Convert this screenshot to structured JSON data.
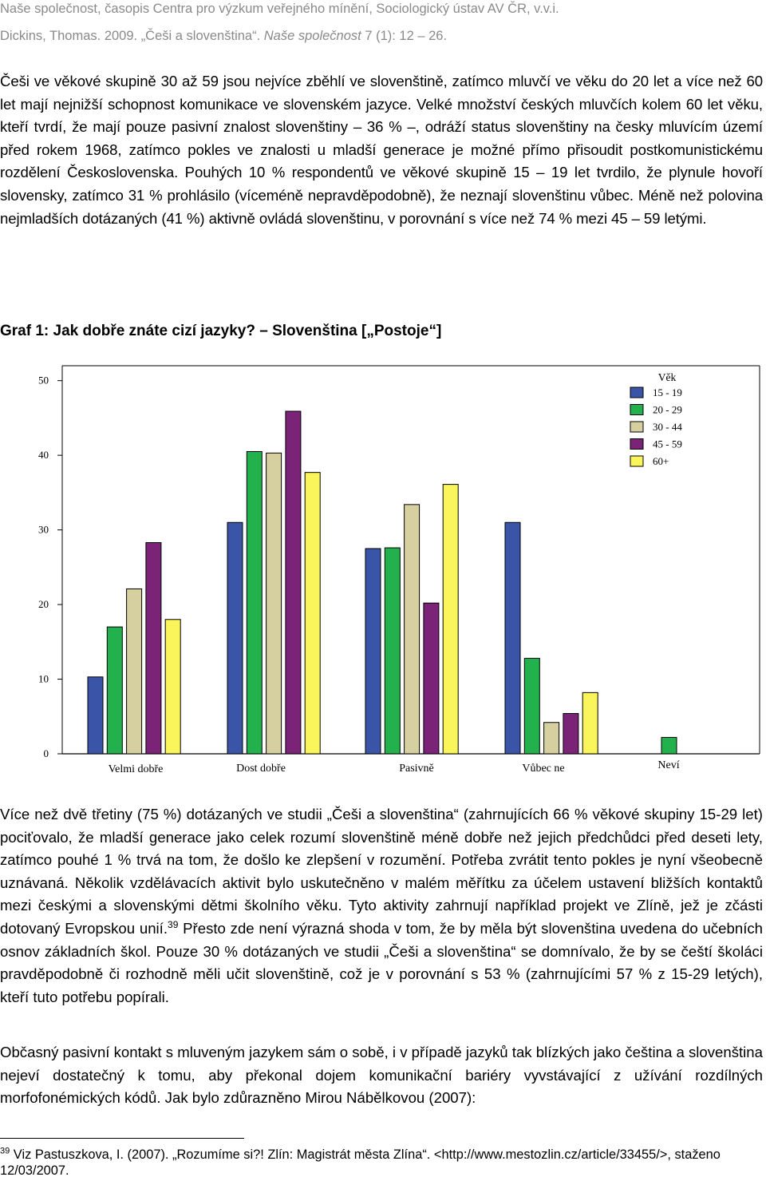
{
  "header": {
    "line1": "Naše společnost, časopis Centra pro výzkum veřejného mínění, Sociologický ústav AV ČR, v.v.i.",
    "line2_plain": "Dickins, Thomas. 2009. „Češi a slovenština“. ",
    "line2_italic": "Naše společnost",
    "line2_end": " 7 (1): 12 – 26."
  },
  "intro_paragraph": "Češi ve věkové skupině 30 až 59 jsou nejvíce zběhlí ve slovenštině, zatímco mluvčí ve věku do 20 let a více než 60 let mají nejnižší schopnost komunikace ve slovenském jazyce. Velké množství českých mluvčích kolem 60 let věku, kteří tvrdí, že mají pouze pasivní znalost slovenštiny – 36 % –, odráží status slovenštiny na česky mluvícím území před rokem 1968, zatímco pokles ve znalosti u mladší generace je možné přímo přisoudit postkomunistickému rozdělení Československa. Pouhých 10 % respondentů ve věkové skupině 15 – 19 let tvrdilo, že plynule hovoří slovensky, zatímco 31 % prohlásilo (víceméně nepravděpodobně), že neznají slovenštinu vůbec. Méně než polovina nejmladších dotázaných (41 %) aktivně ovládá slovenštinu, v porovnání s více než 74 % mezi 45 – 59 letými.",
  "chart_caption": "Graf 1: Jak dobře znáte cizí jazyky? – Slovenština [„Postoje“]",
  "colors": {
    "15 - 19": "#3a55a8",
    "20 - 29": "#22b14c",
    "30 - 44": "#d6cfa0",
    "45 - 59": "#7a2377",
    "60+": "#faf55a"
  },
  "chart_data": {
    "type": "bar",
    "categories": [
      "Velmi dobře",
      "Dost dobře",
      "Pasivně",
      "Vůbec ne",
      "Neví"
    ],
    "series": [
      {
        "name": "15 - 19",
        "values": [
          10.3,
          31.0,
          27.5,
          31.0,
          null
        ]
      },
      {
        "name": "20 - 29",
        "values": [
          17.0,
          40.5,
          27.6,
          12.8,
          2.2
        ]
      },
      {
        "name": "30 - 44",
        "values": [
          22.1,
          40.3,
          33.4,
          4.2,
          null
        ]
      },
      {
        "name": "45 - 59",
        "values": [
          28.3,
          45.9,
          20.2,
          5.4,
          null
        ]
      },
      {
        "name": "60+",
        "values": [
          18.0,
          37.7,
          36.1,
          8.2,
          null
        ]
      }
    ],
    "yticks": [
      0,
      10,
      20,
      30,
      40,
      50
    ],
    "ylim": [
      0,
      52
    ],
    "legend_title": "Věk",
    "legend_position": "top-right",
    "grid": false
  },
  "body_paragraph_1": {
    "before_sup": "Více než dvě třetiny (75 %) dotázaných ve studii „Češi a slovenština“ (zahrnujících 66 % věkové skupiny 15-29 let) pociťovalo, že mladší generace jako celek rozumí slovenštině méně dobře než jejich předchůdci před deseti lety, zatímco pouhé 1 % trvá na tom, že došlo ke zlepšení v rozumění. Potřeba zvrátit tento pokles je nyní všeobecně uznávaná. Několik vzdělávacích aktivit bylo uskutečněno v malém měřítku za účelem ustavení bližších kontaktů mezi českými a slovenskými dětmi školního věku. Tyto aktivity zahrnují například projekt ve Zlíně, jež je zčásti dotovaný Evropskou unií.",
    "sup": "39",
    "after_sup": " Přesto zde není výrazná shoda v tom, že by měla být slovenština uvedena do učebních osnov základních škol. Pouze 30 % dotázaných ve studii „Češi a slovenština“ se domnívalo, že by se čeští školáci  pravděpodobně či rozhodně měli učit slovenštině, což je v porovnání s 53 % (zahrnujícími 57 % z 15-29 letých), kteří tuto potřebu popírali."
  },
  "body_paragraph_2": "Občasný pasivní kontakt s mluveným jazykem sám o sobě, i v případě jazyků tak blízkých jako čeština a slovenština nejeví dostatečný k tomu, aby překonal dojem komunikační bariéry vyvstávající z užívání rozdílných morfofonémických kódů. Jak bylo zdůrazněno Mirou Nábělkovou (2007):",
  "footnote": {
    "number": "39",
    "text": " Viz Pastuszkova, I. (2007). „Rozumíme si?! Zlín: Magistrát města Zlína“. <http://www.mestozlin.cz/article/33455/>, staženo 12/03/2007."
  }
}
